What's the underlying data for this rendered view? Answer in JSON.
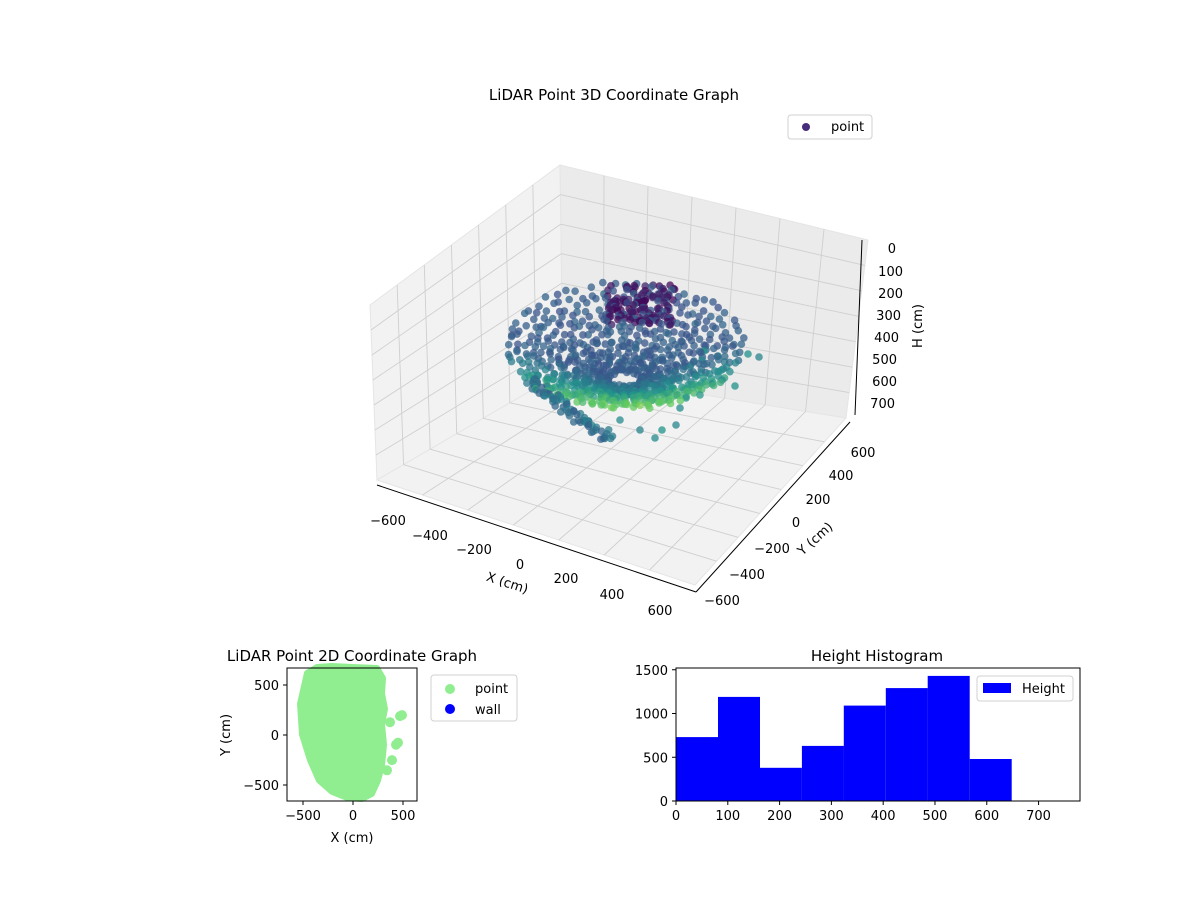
{
  "chart_data": [
    {
      "type": "scatter",
      "title": "LiDAR Point 3D Coordinate Graph",
      "xlabel": "X (cm)",
      "ylabel": "Y (cm)",
      "zlabel": "H (cm)",
      "xlim": [
        -650,
        650
      ],
      "ylim": [
        -650,
        650
      ],
      "zlim": [
        750,
        0
      ],
      "xticks": [
        "−600",
        "−400",
        "−200",
        "0",
        "200",
        "400",
        "600"
      ],
      "yticks": [
        "−600",
        "−400",
        "−200",
        "0",
        "200",
        "400",
        "600"
      ],
      "zticks": [
        "0",
        "100",
        "200",
        "300",
        "400",
        "500",
        "600",
        "700"
      ],
      "grid": true,
      "legend": {
        "position": "top-right",
        "entries": [
          "point"
        ]
      },
      "colormap": "viridis",
      "legend_color": "#472d7b",
      "series": [
        {
          "name": "point",
          "description_points": [
            {
              "x": -520,
              "y": 120,
              "h": 360
            },
            {
              "x": -480,
              "y": 350,
              "h": 380
            },
            {
              "x": -420,
              "y": -200,
              "h": 520
            },
            {
              "x": -300,
              "y": 500,
              "h": 200
            },
            {
              "x": -200,
              "y": 550,
              "h": 180
            },
            {
              "x": -100,
              "y": 580,
              "h": 170
            },
            {
              "x": 0,
              "y": 560,
              "h": 160
            },
            {
              "x": 100,
              "y": 500,
              "h": 240
            },
            {
              "x": 200,
              "y": 450,
              "h": 200
            },
            {
              "x": 300,
              "y": 300,
              "h": 300
            },
            {
              "x": 250,
              "y": 0,
              "h": 550
            },
            {
              "x": 150,
              "y": -300,
              "h": 620
            },
            {
              "x": 50,
              "y": -500,
              "h": 650
            },
            {
              "x": -100,
              "y": -550,
              "h": 640
            },
            {
              "x": -250,
              "y": -500,
              "h": 600
            }
          ]
        }
      ]
    },
    {
      "type": "scatter",
      "title": "LiDAR Point 2D Coordinate Graph",
      "xlabel": "X (cm)",
      "ylabel": "Y (cm)",
      "xlim": [
        -650,
        650
      ],
      "ylim": [
        -650,
        650
      ],
      "xticks": [
        "−500",
        "0",
        "500"
      ],
      "yticks": [
        "−500",
        "0",
        "500"
      ],
      "legend": {
        "position": "outside-right",
        "entries": [
          "point",
          "wall"
        ]
      },
      "series": [
        {
          "name": "point",
          "color": "#90ee90"
        },
        {
          "name": "wall",
          "color": "#0000ff"
        }
      ],
      "outline": [
        [
          -450,
          600
        ],
        [
          -350,
          660
        ],
        [
          -200,
          670
        ],
        [
          0,
          660
        ],
        [
          250,
          650
        ],
        [
          310,
          550
        ],
        [
          300,
          400
        ],
        [
          330,
          250
        ],
        [
          300,
          100
        ],
        [
          320,
          -100
        ],
        [
          300,
          -300
        ],
        [
          260,
          -450
        ],
        [
          200,
          -580
        ],
        [
          100,
          -630
        ],
        [
          -50,
          -620
        ],
        [
          -200,
          -560
        ],
        [
          -330,
          -450
        ],
        [
          -420,
          -250
        ],
        [
          -500,
          0
        ],
        [
          -520,
          300
        ]
      ],
      "protrusions": [
        {
          "x": 480,
          "y": 180
        },
        {
          "x": 500,
          "y": 190
        },
        {
          "x": 440,
          "y": -100
        },
        {
          "x": 460,
          "y": -80
        },
        {
          "x": 400,
          "y": -250
        },
        {
          "x": 380,
          "y": 120
        },
        {
          "x": 350,
          "y": -350
        }
      ]
    },
    {
      "type": "bar",
      "title": "Height Histogram",
      "xlim": [
        0,
        780
      ],
      "ylim": [
        0,
        1520
      ],
      "xticks": [
        "0",
        "100",
        "200",
        "300",
        "400",
        "500",
        "600",
        "700"
      ],
      "yticks": [
        "0",
        "500",
        "1000",
        "1500"
      ],
      "legend": {
        "position": "top-right",
        "entries": [
          "Height"
        ]
      },
      "color": "#0000ff",
      "bins": [
        {
          "start": 0,
          "end": 81,
          "count": 730
        },
        {
          "start": 81,
          "end": 162,
          "count": 1190
        },
        {
          "start": 162,
          "end": 243,
          "count": 380
        },
        {
          "start": 243,
          "end": 324,
          "count": 630
        },
        {
          "start": 324,
          "end": 405,
          "count": 1090
        },
        {
          "start": 405,
          "end": 486,
          "count": 1290
        },
        {
          "start": 486,
          "end": 567,
          "count": 1430
        },
        {
          "start": 567,
          "end": 648,
          "count": 480
        }
      ],
      "series": [
        {
          "name": "Height"
        }
      ]
    }
  ]
}
